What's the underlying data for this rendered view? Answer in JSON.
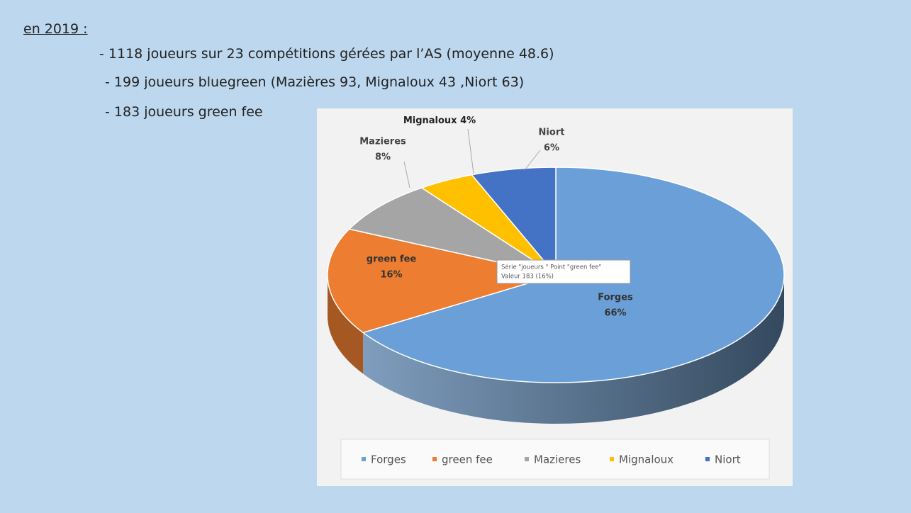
{
  "heading": "en 2019 :",
  "lines": [
    "- 1118 joueurs sur 23 compétitions gérées par l’AS  (moyenne 48.6)",
    "- 199 joueurs bluegreen (Mazières 93, Mignaloux 43 ,Niort  63)",
    "- 183 joueurs green fee"
  ],
  "chart_data": {
    "type": "pie",
    "categories": [
      "Forges",
      "green fee",
      "Mazieres",
      "Mignaloux",
      "Niort"
    ],
    "values": [
      66,
      16,
      8,
      4,
      6
    ],
    "value_labels": [
      "66%",
      "16%",
      "8%",
      "4%",
      "6%"
    ],
    "colors": [
      "#6a9fd8",
      "#ed7d31",
      "#a5a5a5",
      "#ffc000",
      "#4472c4"
    ],
    "legend": "bottom",
    "tooltip": [
      "Série \"joueurs \" Point \"green fee\"",
      "Valeur 183 (16%)"
    ]
  }
}
